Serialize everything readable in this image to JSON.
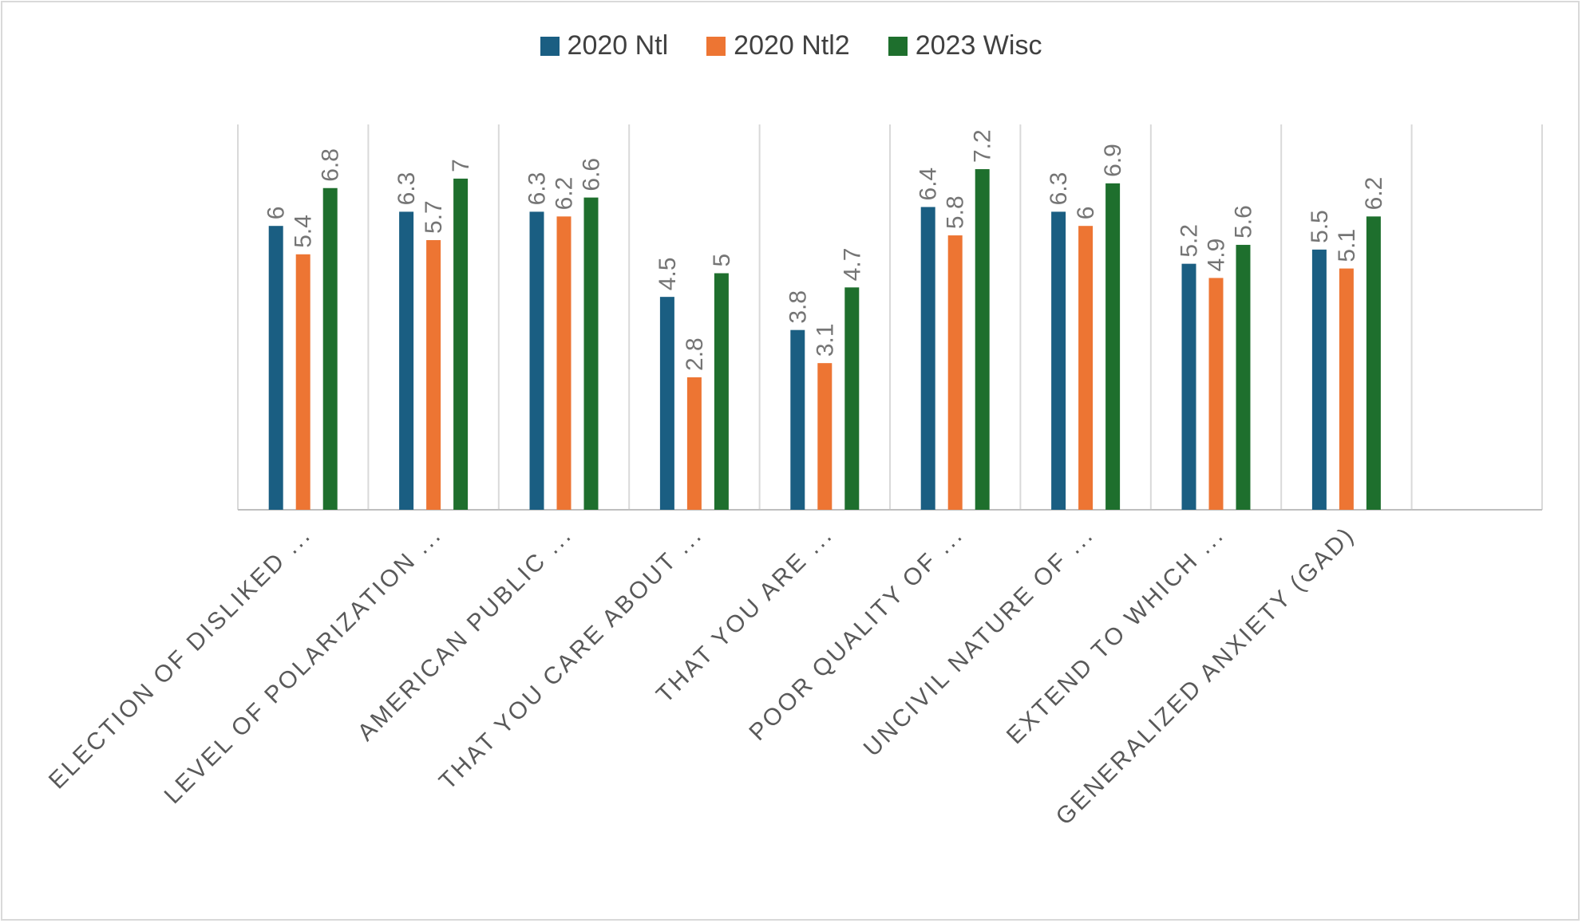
{
  "chart_data": {
    "type": "bar",
    "categories": [
      "ELECTION OF DISLIKED ...",
      "LEVEL OF POLARIZATION ...",
      "AMERICAN PUBLIC ...",
      "THAT YOU CARE ABOUT ...",
      "THAT YOU ARE ...",
      "POOR QUALITY OF ...",
      "UNCIVIL NATURE OF ...",
      "EXTEND TO WHICH ...",
      "GENERALIZED ANXIETY (GAD)",
      ""
    ],
    "series": [
      {
        "name": "2020 Ntl",
        "color": "#1a5e82",
        "values": [
          6,
          6.3,
          6.3,
          4.5,
          3.8,
          6.4,
          6.3,
          5.2,
          5.5,
          null
        ]
      },
      {
        "name": "2020 Ntl2",
        "color": "#ed7533",
        "values": [
          5.4,
          5.7,
          6.2,
          2.8,
          3.1,
          5.8,
          6,
          4.9,
          5.1,
          null
        ]
      },
      {
        "name": "2023 Wisc",
        "color": "#1e6f2d",
        "values": [
          6.8,
          7,
          6.6,
          5,
          4.7,
          7.2,
          6.9,
          5.6,
          6.2,
          null
        ]
      }
    ],
    "data_labels": [
      [
        "6",
        "6.3",
        "6.3",
        "4.5",
        "3.8",
        "6.4",
        "6.3",
        "5.2",
        "5.5",
        ""
      ],
      [
        "5.4",
        "5.7",
        "6.2",
        "2.8",
        "3.1",
        "5.8",
        "6",
        "4.9",
        "5.1",
        ""
      ],
      [
        "6.8",
        "7",
        "6.6",
        "5",
        "4.7",
        "7.2",
        "6.9",
        "5.6",
        "6.2",
        ""
      ]
    ],
    "ylim": [
      0,
      8
    ],
    "legend_position": "top",
    "grid": "vertical category separators"
  }
}
